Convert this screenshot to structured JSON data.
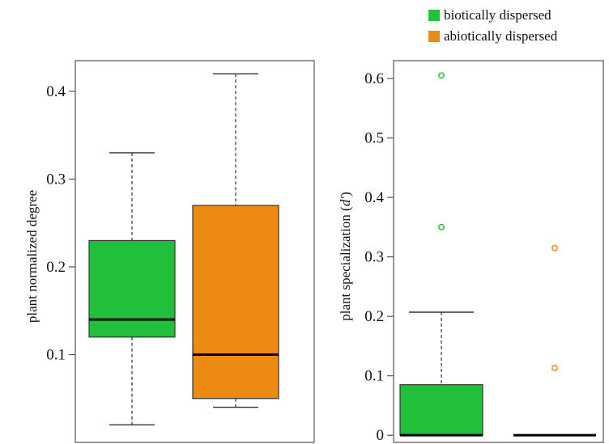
{
  "colors": {
    "biotic": "#21c03a",
    "abiotic": "#ec8b14",
    "median": "#000000",
    "frame": "#555555"
  },
  "legend": {
    "items": [
      {
        "label": "biotically dispersed",
        "color": "#21c03a"
      },
      {
        "label": "abiotically dispersed",
        "color": "#ec8b14"
      }
    ]
  },
  "chart_data": [
    {
      "type": "box",
      "ylabel": "plant normalized degree",
      "ylim": [
        0,
        0.435
      ],
      "yticks": [
        0.1,
        0.2,
        0.3,
        0.4
      ],
      "ytick_labels": [
        "0.1",
        "0.2",
        "0.3",
        "0.4"
      ],
      "boxes": [
        {
          "group": "biotically dispersed",
          "min": 0.02,
          "q1": 0.12,
          "median": 0.14,
          "q3": 0.23,
          "max": 0.33,
          "outliers": []
        },
        {
          "group": "abiotically dispersed",
          "min": 0.04,
          "q1": 0.05,
          "median": 0.1,
          "q3": 0.27,
          "max": 0.42,
          "outliers": []
        }
      ]
    },
    {
      "type": "box",
      "ylabel": "plant specialization (d′)",
      "ylabel_main": "plant specialization (",
      "ylabel_symbol": "d′",
      "ylabel_end": ")",
      "ylim": [
        -0.012,
        0.63
      ],
      "yticks": [
        0,
        0.1,
        0.2,
        0.3,
        0.4,
        0.5,
        0.6
      ],
      "ytick_labels": [
        "0",
        "0.1",
        "0.2",
        "0.3",
        "0.4",
        "0.5",
        "0.6"
      ],
      "boxes": [
        {
          "group": "biotically dispersed",
          "min": 0.0,
          "q1": 0.0,
          "median": 0.0,
          "q3": 0.085,
          "max": 0.207,
          "outliers": [
            0.35,
            0.605
          ]
        },
        {
          "group": "abiotically dispersed",
          "min": 0.0,
          "q1": 0.0,
          "median": 0.0,
          "q3": 0.0,
          "max": 0.0,
          "outliers": [
            0.113,
            0.315
          ]
        }
      ]
    }
  ]
}
